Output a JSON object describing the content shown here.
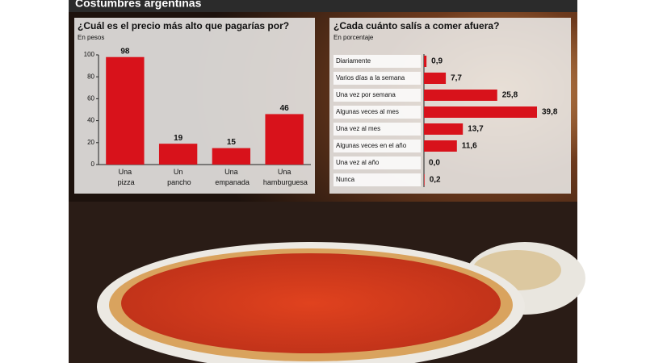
{
  "header": "Costumbres argentinas",
  "chart_data": [
    {
      "type": "bar",
      "title": "¿Cuál es el precio más alto que pagarías por?",
      "subtitle": "En pesos",
      "categories": [
        "Una pizza",
        "Un pancho",
        "Una empanada",
        "Una hamburguesa"
      ],
      "values": [
        98,
        19,
        15,
        46
      ],
      "color": "#d8121b",
      "ylim": [
        0,
        100
      ],
      "yticks": [
        0,
        20,
        40,
        60,
        80,
        100
      ]
    },
    {
      "type": "hbar",
      "title": "¿Cada cuánto salís a comer afuera?",
      "subtitle": "En porcentaje",
      "categories": [
        "Diariamente",
        "Varios días a la semana",
        "Una vez por semana",
        "Algunas veces al mes",
        "Una vez al mes",
        "Algunas veces en el año",
        "Una vez al año",
        "Nunca"
      ],
      "values": [
        0.9,
        7.7,
        25.8,
        39.8,
        13.7,
        11.6,
        0.0,
        0.2
      ],
      "value_labels": [
        "0,9",
        "7,7",
        "25,8",
        "39,8",
        "13,7",
        "11,6",
        "0,0",
        "0,2"
      ],
      "color": "#d8121b"
    }
  ]
}
